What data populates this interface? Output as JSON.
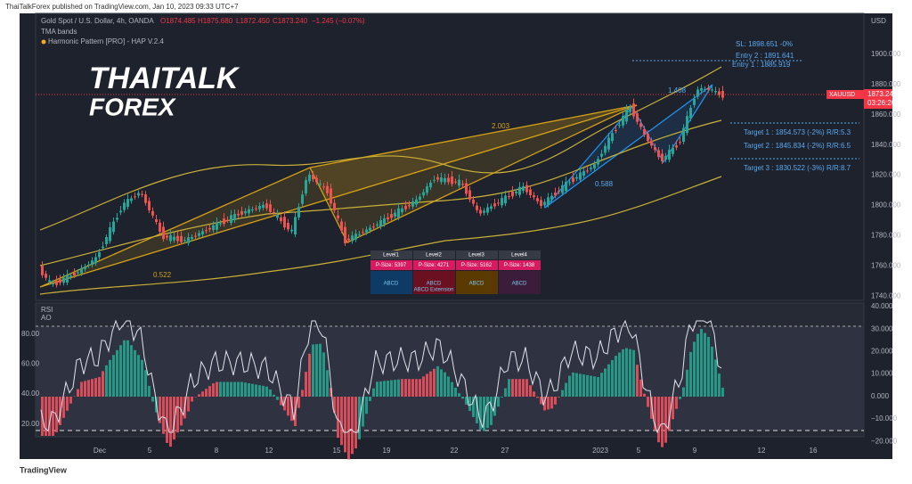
{
  "header": {
    "publisher": "ThaiTalkForex published on TradingView.com, Jan 10, 2023 09:33 UTC+7"
  },
  "legend": {
    "symbol": "Gold Spot / U.S. Dollar, 4h, OANDA",
    "open": "O1874.485",
    "high": "H1875.680",
    "low": "L1872.450",
    "close": "C1873.240",
    "change": "−1.245 (−0.07%)",
    "indicators": [
      "TMA bands",
      "Harmonic Pattern [PRO] - HAP V.2.4"
    ]
  },
  "logo": [
    "THAITALK",
    "FOREX"
  ],
  "price_axis": {
    "unit": "USD",
    "labels": [
      "1900.000",
      "1880.000",
      "1860.000",
      "1840.000",
      "1820.000",
      "1800.000",
      "1780.000",
      "1760.000",
      "1740.000"
    ],
    "current": {
      "symbol": "XAUUSD",
      "price": "1873.240",
      "countdown": "03:26:20"
    }
  },
  "annotations": {
    "sl": "SL: 1898.651 -0%",
    "entry2": "Entry 2 : 1891.641",
    "entry1": "Entry 1 : 1885.919",
    "targets": [
      "Target 1 : 1854.573 (-2%) R/R:5.3",
      "Target 2 : 1845.834 (-2%) R/R:6.5",
      "Target 3 : 1830.522 (-3%) R/R:8.7"
    ],
    "fib": [
      "2.003",
      "0.522",
      "0.588",
      "1.408"
    ]
  },
  "level_table": {
    "headers": [
      "Level1",
      "Level2",
      "Level3",
      "Level4"
    ],
    "sizes": [
      "P-Size: 5397",
      "P-Size: 4271",
      "P-Size: 5162",
      "P-Size: 1438"
    ],
    "patterns": [
      [
        "ABCD"
      ],
      [
        "ABCD",
        "ABCD Extension"
      ],
      [
        "ABCD"
      ],
      [
        "ABCD"
      ]
    ]
  },
  "indicator_pane": {
    "labels": [
      "RSI",
      "AO"
    ],
    "left_axis": [
      "80.00",
      "60.00",
      "40.00",
      "20.00"
    ],
    "right_axis": [
      "40.000",
      "30.000",
      "20.000",
      "10.000",
      "0.000",
      "−10.000",
      "−20.000"
    ]
  },
  "time_axis": [
    "Dec",
    "5",
    "8",
    "12",
    "15",
    "19",
    "22",
    "27",
    "2023",
    "5",
    "9",
    "12",
    "16"
  ],
  "footer": "TradingView"
}
